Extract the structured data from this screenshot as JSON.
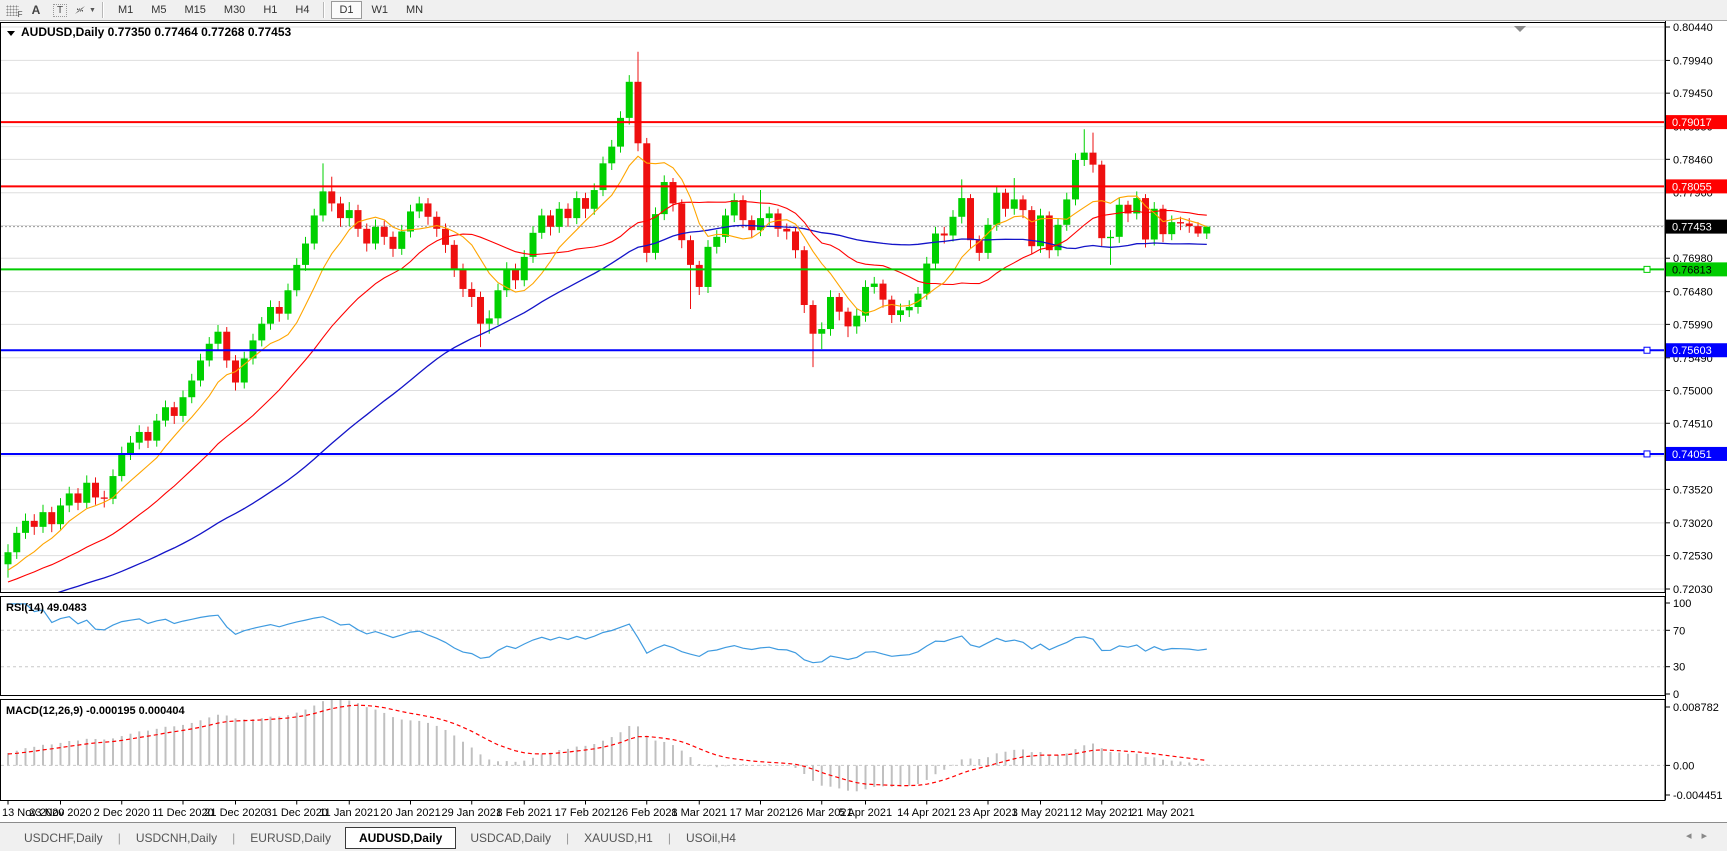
{
  "toolbar": {
    "tools": [
      "F",
      "A",
      "T"
    ],
    "timeframes": [
      "M1",
      "M5",
      "M15",
      "M30",
      "H1",
      "H4",
      "D1",
      "W1",
      "MN"
    ],
    "active_timeframe": "D1"
  },
  "chart": {
    "title": {
      "symbol": "AUDUSD,Daily",
      "open": "0.77350",
      "high": "0.77464",
      "low": "0.77268",
      "close": "0.77453"
    }
  },
  "chart_data": {
    "type": "candlestick",
    "symbol": "AUDUSD",
    "timeframe": "Daily",
    "price_axis": {
      "min": 0.71985,
      "max": 0.805,
      "gridlines": [
        "0.80440",
        "0.79940",
        "0.79450",
        "0.78950",
        "0.78460",
        "0.77960",
        "0.77470",
        "0.76980",
        "0.76480",
        "0.75990",
        "0.75490",
        "0.75000",
        "0.74510",
        "0.74020",
        "0.73520",
        "0.73020",
        "0.72530",
        "0.72030"
      ]
    },
    "badges": [
      {
        "text": "0.79017",
        "price": 0.79017,
        "bg": "#ff0000",
        "fg": "#ffffff"
      },
      {
        "text": "0.78055",
        "price": 0.78055,
        "bg": "#ff0000",
        "fg": "#ffffff"
      },
      {
        "text": "0.77453",
        "price": 0.77453,
        "bg": "#000000",
        "fg": "#ffffff"
      },
      {
        "text": "0.76813",
        "price": 0.76813,
        "bg": "#00cc00",
        "fg": "#000000"
      },
      {
        "text": "0.75603",
        "price": 0.75603,
        "bg": "#0000ff",
        "fg": "#ffffff"
      },
      {
        "text": "0.74051",
        "price": 0.74051,
        "bg": "#0000ff",
        "fg": "#ffffff"
      }
    ],
    "hlines": [
      {
        "price": 0.79017,
        "color": "#ff0000",
        "marker": false
      },
      {
        "price": 0.78055,
        "color": "#ff0000",
        "marker": false
      },
      {
        "price": 0.76813,
        "color": "#00cc00",
        "marker": true
      },
      {
        "price": 0.75603,
        "color": "#0000ff",
        "marker": true
      },
      {
        "price": 0.74051,
        "color": "#0000ff",
        "marker": true
      }
    ],
    "current_price": 0.77453,
    "colors": {
      "bull": "#00d000",
      "bear": "#ee1010",
      "ma_fast": "#ffa500",
      "ma_mid": "#ff0000",
      "ma_slow": "#1414c8",
      "rsi": "#3f9be0",
      "rsi_level": "#c8c8c8",
      "macd_hist": "#c0c0c0",
      "macd_signal": "#ff0000",
      "grid": "#dedede"
    },
    "ma_periods": {
      "fast": 8,
      "mid": 21,
      "slow": 50
    },
    "date_ticks": [
      [
        0,
        "13 Nov 2020"
      ],
      [
        6,
        "23 Nov 2020"
      ],
      [
        13,
        "2 Dec 2020"
      ],
      [
        20,
        "11 Dec 2020"
      ],
      [
        26,
        "21 Dec 2020"
      ],
      [
        33,
        "31 Dec 2020"
      ],
      [
        39,
        "11 Jan 2021"
      ],
      [
        46,
        "20 Jan 2021"
      ],
      [
        53,
        "29 Jan 2021"
      ],
      [
        59,
        "8 Feb 2021"
      ],
      [
        66,
        "17 Feb 2021"
      ],
      [
        73,
        "26 Feb 2021"
      ],
      [
        79,
        "8 Mar 2021"
      ],
      [
        86,
        "17 Mar 2021"
      ],
      [
        93,
        "26 Mar 2021"
      ],
      [
        98,
        "5 Apr 2021"
      ],
      [
        105,
        "14 Apr 2021"
      ],
      [
        112,
        "23 Apr 2021"
      ],
      [
        118,
        "3 May 2021"
      ],
      [
        125,
        "12 May 2021"
      ],
      [
        132,
        "21 May 2021"
      ]
    ],
    "rsi": {
      "label": "RSI(14) 49.0483",
      "period": 14,
      "levels": [
        70,
        30
      ],
      "axis": [
        "100",
        "70",
        "30",
        "0"
      ]
    },
    "macd": {
      "label": "MACD(12,26,9) -0.000195 0.000404",
      "fast": 12,
      "slow": 26,
      "signal": 9,
      "axis": [
        {
          "text": "0.008782",
          "v": 0.008782
        },
        {
          "text": "0.00",
          "v": 0
        },
        {
          "text": "-0.004451",
          "v": -0.004451
        }
      ],
      "range": [
        -0.004451,
        0.008782
      ]
    },
    "ohlc": [
      [
        0.724,
        0.727,
        0.722,
        0.7258
      ],
      [
        0.7258,
        0.7296,
        0.7248,
        0.7287
      ],
      [
        0.7287,
        0.7316,
        0.7278,
        0.7305
      ],
      [
        0.7305,
        0.7315,
        0.7284,
        0.7296
      ],
      [
        0.7296,
        0.7329,
        0.7287,
        0.7318
      ],
      [
        0.7318,
        0.7326,
        0.7288,
        0.73
      ],
      [
        0.73,
        0.7339,
        0.7292,
        0.7328
      ],
      [
        0.7328,
        0.7356,
        0.7318,
        0.7346
      ],
      [
        0.7346,
        0.7354,
        0.7321,
        0.7332
      ],
      [
        0.7332,
        0.7373,
        0.7324,
        0.7362
      ],
      [
        0.7362,
        0.737,
        0.7329,
        0.734
      ],
      [
        0.734,
        0.735,
        0.7325,
        0.7338
      ],
      [
        0.7338,
        0.7382,
        0.733,
        0.7372
      ],
      [
        0.7372,
        0.7416,
        0.7364,
        0.7406
      ],
      [
        0.7406,
        0.7432,
        0.7396,
        0.7422
      ],
      [
        0.7422,
        0.7448,
        0.7412,
        0.7438
      ],
      [
        0.7438,
        0.7446,
        0.7414,
        0.7425
      ],
      [
        0.7425,
        0.7465,
        0.7416,
        0.7455
      ],
      [
        0.7455,
        0.7485,
        0.7446,
        0.7475
      ],
      [
        0.7475,
        0.7483,
        0.745,
        0.7462
      ],
      [
        0.7462,
        0.75,
        0.7453,
        0.749
      ],
      [
        0.749,
        0.7525,
        0.7481,
        0.7515
      ],
      [
        0.7515,
        0.7555,
        0.7506,
        0.7545
      ],
      [
        0.7545,
        0.758,
        0.7536,
        0.757
      ],
      [
        0.757,
        0.7598,
        0.756,
        0.7588
      ],
      [
        0.7588,
        0.7595,
        0.7534,
        0.7545
      ],
      [
        0.7545,
        0.7553,
        0.75,
        0.7512
      ],
      [
        0.7512,
        0.7558,
        0.7503,
        0.7548
      ],
      [
        0.7548,
        0.7585,
        0.7539,
        0.7575
      ],
      [
        0.7575,
        0.761,
        0.7566,
        0.76
      ],
      [
        0.76,
        0.7635,
        0.7591,
        0.7625
      ],
      [
        0.7625,
        0.7634,
        0.7603,
        0.7615
      ],
      [
        0.7615,
        0.766,
        0.7606,
        0.765
      ],
      [
        0.765,
        0.7698,
        0.7641,
        0.7688
      ],
      [
        0.7688,
        0.773,
        0.7679,
        0.772
      ],
      [
        0.772,
        0.7772,
        0.7711,
        0.7762
      ],
      [
        0.7762,
        0.784,
        0.7753,
        0.7798
      ],
      [
        0.7798,
        0.782,
        0.7768,
        0.778
      ],
      [
        0.778,
        0.779,
        0.7745,
        0.7758
      ],
      [
        0.7758,
        0.7782,
        0.7746,
        0.777
      ],
      [
        0.777,
        0.7778,
        0.773,
        0.7742
      ],
      [
        0.7742,
        0.775,
        0.7708,
        0.772
      ],
      [
        0.772,
        0.7756,
        0.7711,
        0.7745
      ],
      [
        0.7745,
        0.7754,
        0.7718,
        0.773
      ],
      [
        0.773,
        0.7738,
        0.77,
        0.7712
      ],
      [
        0.7712,
        0.7748,
        0.7703,
        0.7738
      ],
      [
        0.7738,
        0.7778,
        0.7729,
        0.7768
      ],
      [
        0.7768,
        0.779,
        0.7758,
        0.778
      ],
      [
        0.778,
        0.7788,
        0.7748,
        0.776
      ],
      [
        0.776,
        0.7768,
        0.773,
        0.7742
      ],
      [
        0.7742,
        0.775,
        0.7706,
        0.7718
      ],
      [
        0.7718,
        0.7725,
        0.767,
        0.7682
      ],
      [
        0.7682,
        0.769,
        0.764,
        0.7652
      ],
      [
        0.7652,
        0.7662,
        0.7625,
        0.764
      ],
      [
        0.764,
        0.7648,
        0.7565,
        0.76
      ],
      [
        0.76,
        0.762,
        0.7585,
        0.7608
      ],
      [
        0.7608,
        0.766,
        0.7598,
        0.765
      ],
      [
        0.765,
        0.7692,
        0.764,
        0.7682
      ],
      [
        0.7682,
        0.769,
        0.7652,
        0.7665
      ],
      [
        0.7665,
        0.771,
        0.7656,
        0.77
      ],
      [
        0.77,
        0.7746,
        0.7691,
        0.7736
      ],
      [
        0.7736,
        0.7772,
        0.7727,
        0.7762
      ],
      [
        0.7762,
        0.777,
        0.7732,
        0.7745
      ],
      [
        0.7745,
        0.7782,
        0.7736,
        0.7772
      ],
      [
        0.7772,
        0.778,
        0.7745,
        0.7758
      ],
      [
        0.7758,
        0.7798,
        0.7749,
        0.7788
      ],
      [
        0.7788,
        0.7796,
        0.7758,
        0.7772
      ],
      [
        0.7772,
        0.781,
        0.7763,
        0.78
      ],
      [
        0.78,
        0.785,
        0.7791,
        0.784
      ],
      [
        0.784,
        0.7875,
        0.783,
        0.7865
      ],
      [
        0.7865,
        0.7918,
        0.7856,
        0.7908
      ],
      [
        0.7908,
        0.7972,
        0.7898,
        0.7962
      ],
      [
        0.7962,
        0.8007,
        0.7858,
        0.787
      ],
      [
        0.787,
        0.7878,
        0.7692,
        0.7706
      ],
      [
        0.7706,
        0.7774,
        0.7696,
        0.7764
      ],
      [
        0.7764,
        0.7822,
        0.7755,
        0.7812
      ],
      [
        0.7812,
        0.7818,
        0.7768,
        0.778
      ],
      [
        0.778,
        0.7786,
        0.7713,
        0.7725
      ],
      [
        0.7725,
        0.7732,
        0.7622,
        0.7688
      ],
      [
        0.7688,
        0.7694,
        0.7643,
        0.7655
      ],
      [
        0.7655,
        0.7725,
        0.7646,
        0.7715
      ],
      [
        0.7715,
        0.774,
        0.7705,
        0.773
      ],
      [
        0.773,
        0.7772,
        0.7721,
        0.7762
      ],
      [
        0.7762,
        0.7795,
        0.7752,
        0.7785
      ],
      [
        0.7785,
        0.7792,
        0.7743,
        0.7755
      ],
      [
        0.7755,
        0.7762,
        0.7728,
        0.774
      ],
      [
        0.774,
        0.78,
        0.7731,
        0.7758
      ],
      [
        0.7758,
        0.7775,
        0.7747,
        0.7765
      ],
      [
        0.7765,
        0.7772,
        0.773,
        0.7742
      ],
      [
        0.7742,
        0.775,
        0.7726,
        0.7738
      ],
      [
        0.7738,
        0.7745,
        0.7698,
        0.771
      ],
      [
        0.771,
        0.7716,
        0.7616,
        0.7628
      ],
      [
        0.7628,
        0.7635,
        0.7535,
        0.7585
      ],
      [
        0.7585,
        0.7602,
        0.7562,
        0.7592
      ],
      [
        0.7592,
        0.765,
        0.7582,
        0.764
      ],
      [
        0.764,
        0.7646,
        0.7605,
        0.7618
      ],
      [
        0.7618,
        0.7624,
        0.758,
        0.7596
      ],
      [
        0.7596,
        0.7622,
        0.7585,
        0.7612
      ],
      [
        0.7612,
        0.7665,
        0.7603,
        0.7655
      ],
      [
        0.7655,
        0.767,
        0.7645,
        0.766
      ],
      [
        0.766,
        0.7666,
        0.7624,
        0.7636
      ],
      [
        0.7636,
        0.7642,
        0.7601,
        0.7613
      ],
      [
        0.7613,
        0.763,
        0.7603,
        0.762
      ],
      [
        0.762,
        0.7635,
        0.761,
        0.7625
      ],
      [
        0.7625,
        0.7655,
        0.7615,
        0.7645
      ],
      [
        0.7645,
        0.77,
        0.7636,
        0.769
      ],
      [
        0.769,
        0.7745,
        0.7681,
        0.7735
      ],
      [
        0.7735,
        0.7745,
        0.772,
        0.7732
      ],
      [
        0.7732,
        0.777,
        0.7723,
        0.776
      ],
      [
        0.776,
        0.7816,
        0.775,
        0.7788
      ],
      [
        0.7788,
        0.7794,
        0.7713,
        0.7725
      ],
      [
        0.7725,
        0.7732,
        0.7694,
        0.7706
      ],
      [
        0.7706,
        0.7758,
        0.7697,
        0.7748
      ],
      [
        0.7748,
        0.7806,
        0.7739,
        0.7796
      ],
      [
        0.7796,
        0.7802,
        0.776,
        0.7772
      ],
      [
        0.7772,
        0.7818,
        0.7763,
        0.7786
      ],
      [
        0.7786,
        0.7792,
        0.7758,
        0.777
      ],
      [
        0.777,
        0.7776,
        0.7704,
        0.7716
      ],
      [
        0.7716,
        0.7772,
        0.7706,
        0.7762
      ],
      [
        0.7762,
        0.7768,
        0.7698,
        0.771
      ],
      [
        0.771,
        0.7758,
        0.7701,
        0.7748
      ],
      [
        0.7748,
        0.7796,
        0.7739,
        0.7786
      ],
      [
        0.7786,
        0.7855,
        0.7777,
        0.7845
      ],
      [
        0.7845,
        0.7891,
        0.7836,
        0.7856
      ],
      [
        0.7856,
        0.7886,
        0.7826,
        0.7838
      ],
      [
        0.7838,
        0.7844,
        0.7716,
        0.7728
      ],
      [
        0.7728,
        0.774,
        0.7688,
        0.773
      ],
      [
        0.773,
        0.7788,
        0.7721,
        0.7778
      ],
      [
        0.7778,
        0.7784,
        0.7752,
        0.7765
      ],
      [
        0.7765,
        0.7798,
        0.7756,
        0.7788
      ],
      [
        0.7788,
        0.7794,
        0.7714,
        0.7726
      ],
      [
        0.7726,
        0.7782,
        0.7717,
        0.7772
      ],
      [
        0.7772,
        0.7778,
        0.7722,
        0.7734
      ],
      [
        0.7734,
        0.7762,
        0.7725,
        0.7752
      ],
      [
        0.7752,
        0.776,
        0.774,
        0.775
      ],
      [
        0.775,
        0.7758,
        0.7736,
        0.7746
      ],
      [
        0.7746,
        0.7752,
        0.773,
        0.7735
      ],
      [
        0.7735,
        0.77464,
        0.77268,
        0.77453
      ]
    ]
  },
  "tabs": {
    "items": [
      {
        "label": "USDCHF,Daily",
        "active": false
      },
      {
        "label": "USDCNH,Daily",
        "active": false
      },
      {
        "label": "EURUSD,Daily",
        "active": false
      },
      {
        "label": "AUDUSD,Daily",
        "active": true
      },
      {
        "label": "USDCAD,Daily",
        "active": false
      },
      {
        "label": "XAUUSD,H1",
        "active": false
      },
      {
        "label": "USOil,H4",
        "active": false
      }
    ],
    "scroll_left": "◂",
    "scroll_right": "▸"
  }
}
